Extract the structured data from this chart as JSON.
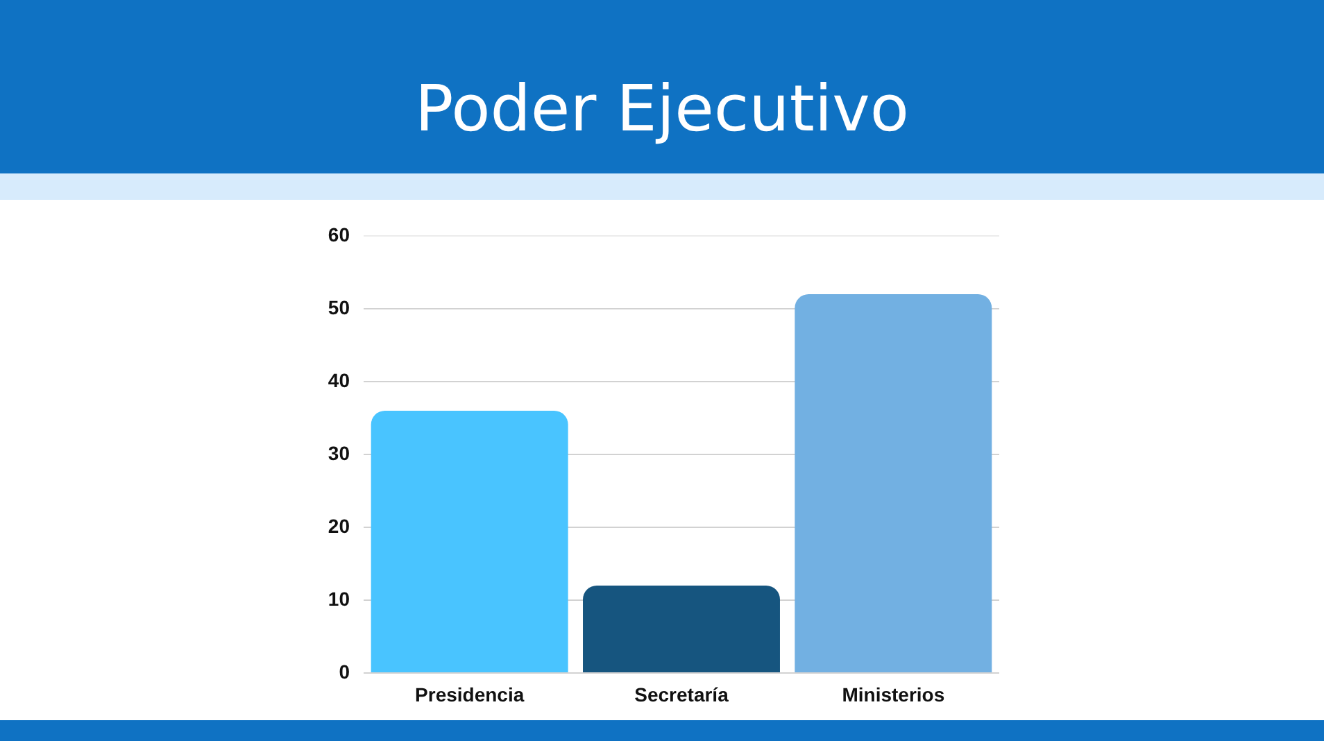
{
  "chart_data": {
    "type": "bar",
    "title": "Poder Ejecutivo",
    "categories": [
      "Presidencia",
      "Secretaría",
      "Ministerios"
    ],
    "values": [
      36,
      12,
      52
    ],
    "colors": [
      "#49c4ff",
      "#16557f",
      "#72b0e2"
    ],
    "ylim": [
      0,
      60
    ],
    "yticks": [
      0,
      10,
      20,
      30,
      40,
      50,
      60
    ],
    "grid": "y"
  }
}
